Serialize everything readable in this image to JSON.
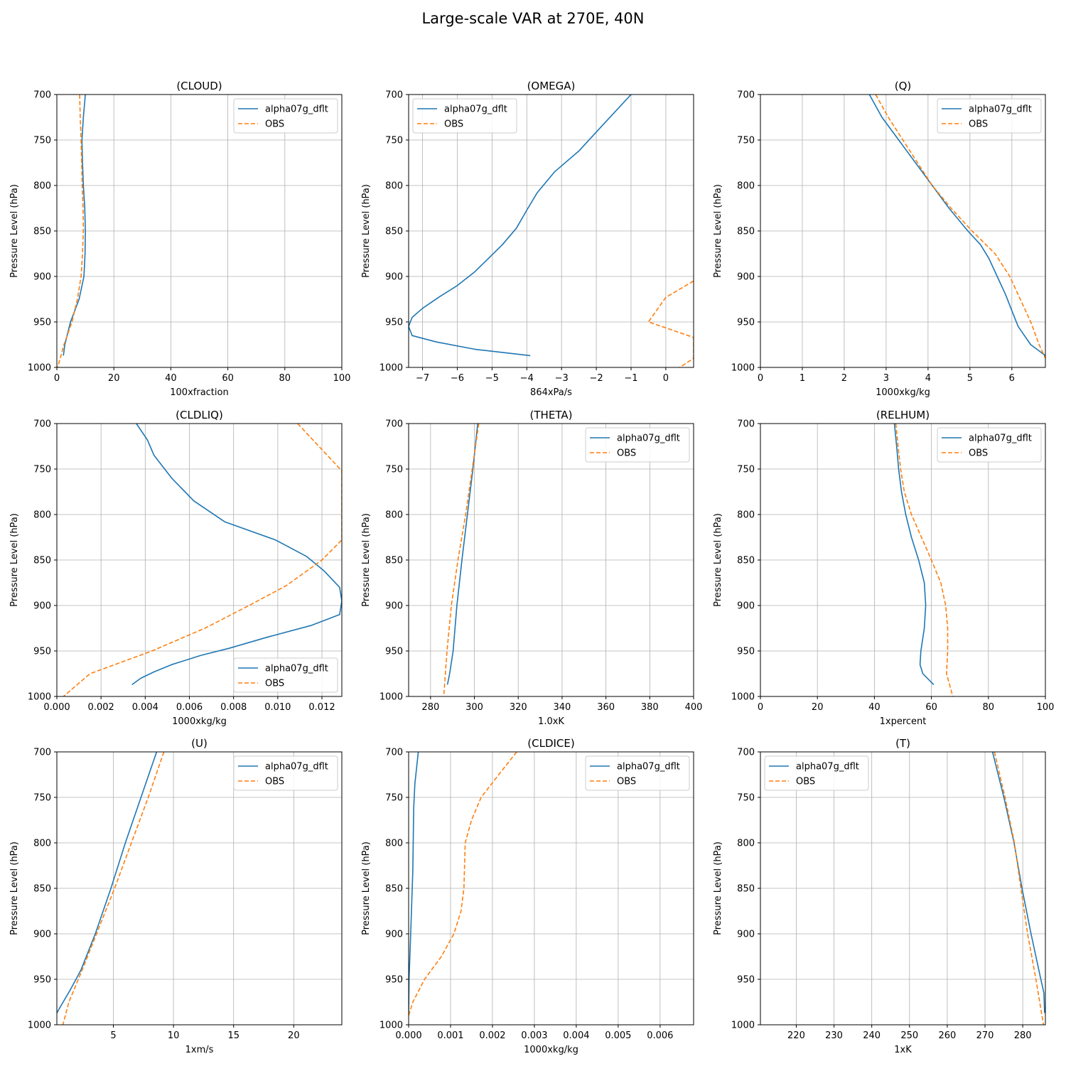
{
  "figure": {
    "title": "Large-scale VAR at 270E, 40N",
    "ylabel": "Pressure Level (hPa)",
    "ylim": [
      1000,
      700
    ],
    "yticks": [
      700,
      750,
      800,
      850,
      900,
      950,
      1000
    ]
  },
  "colors": {
    "model": "#1f77b4",
    "obs": "#ff7f0e",
    "grid": "#b0b0b0"
  },
  "chart_data": [
    {
      "type": "line",
      "title": "(CLOUD)",
      "xlabel": "100xfraction",
      "ylabel": "Pressure Level (hPa)",
      "xlim": [
        0,
        100
      ],
      "xticks": [
        0,
        20,
        40,
        60,
        80,
        100
      ],
      "ylim": [
        1000,
        700
      ],
      "grid": true,
      "legend": "upper-right",
      "series": [
        {
          "name": "alpha07g_dflt",
          "style": "solid",
          "p": [
            700,
            725,
            750,
            775,
            800,
            825,
            850,
            875,
            900,
            925,
            950,
            975,
            987
          ],
          "x": [
            10,
            9.3,
            8.8,
            9,
            9.3,
            9.8,
            10,
            9.9,
            9.5,
            7.8,
            4.8,
            2.8,
            2.3
          ]
        },
        {
          "name": "OBS",
          "style": "dashed",
          "p": [
            700,
            725,
            750,
            775,
            800,
            825,
            850,
            875,
            900,
            925,
            950,
            975,
            1000
          ],
          "x": [
            8,
            8.2,
            8.5,
            8.7,
            8.9,
            9.2,
            9.3,
            9,
            8.5,
            7.2,
            5.3,
            2.5,
            0.3
          ]
        }
      ]
    },
    {
      "type": "line",
      "title": "(OMEGA)",
      "xlabel": "864xPa/s",
      "ylabel": "Pressure Level (hPa)",
      "xlim": [
        -7.4,
        0.8
      ],
      "xticks": [
        -7,
        -6,
        -5,
        -4,
        -3,
        -2,
        -1,
        0
      ],
      "ylim": [
        1000,
        700
      ],
      "grid": true,
      "legend": "upper-left",
      "series": [
        {
          "name": "alpha07g_dflt",
          "style": "solid",
          "p": [
            700,
            737,
            762,
            785,
            808,
            827,
            847,
            865,
            880,
            895,
            910,
            922,
            935,
            945,
            955,
            965,
            972,
            980,
            987
          ],
          "x": [
            -1,
            -1.9,
            -2.5,
            -3.2,
            -3.7,
            -4,
            -4.3,
            -4.7,
            -5.1,
            -5.5,
            -6,
            -6.5,
            -7,
            -7.3,
            -7.4,
            -7.3,
            -6.6,
            -5.5,
            -3.9
          ]
        },
        {
          "name": "OBS",
          "style": "dashed",
          "p": [
            905,
            923,
            950,
            967,
            990,
            1000
          ],
          "x": [
            0.8,
            0,
            -0.5,
            0.8,
            0.8,
            0.4
          ]
        }
      ]
    },
    {
      "type": "line",
      "title": "(Q)",
      "xlabel": "1000xkg/kg",
      "ylabel": "Pressure Level (hPa)",
      "xlim": [
        0,
        6.8
      ],
      "xticks": [
        0,
        1,
        2,
        3,
        4,
        5,
        6
      ],
      "ylim": [
        1000,
        700
      ],
      "grid": true,
      "legend": "upper-right",
      "series": [
        {
          "name": "alpha07g_dflt",
          "style": "solid",
          "p": [
            700,
            725,
            750,
            775,
            800,
            825,
            850,
            865,
            880,
            900,
            920,
            940,
            955,
            965,
            975,
            987
          ],
          "x": [
            2.6,
            2.9,
            3.3,
            3.7,
            4.1,
            4.5,
            4.95,
            5.25,
            5.45,
            5.65,
            5.85,
            6.02,
            6.15,
            6.3,
            6.45,
            6.8
          ]
        },
        {
          "name": "OBS",
          "style": "dashed",
          "p": [
            700,
            725,
            750,
            775,
            800,
            825,
            850,
            875,
            900,
            925,
            950,
            975,
            990
          ],
          "x": [
            2.75,
            3.05,
            3.4,
            3.75,
            4.1,
            4.55,
            5.05,
            5.6,
            5.95,
            6.2,
            6.45,
            6.65,
            6.8
          ]
        }
      ]
    },
    {
      "type": "line",
      "title": "(CLDLIQ)",
      "xlabel": "1000xkg/kg",
      "ylabel": "Pressure Level (hPa)",
      "xlim": [
        0,
        0.0129
      ],
      "xticks": [
        0.0,
        0.002,
        0.004,
        0.006,
        0.008,
        0.01,
        0.012
      ],
      "ylim": [
        1000,
        700
      ],
      "grid": true,
      "legend": "lower-right",
      "series": [
        {
          "name": "alpha07g_dflt",
          "style": "solid",
          "p": [
            700,
            718,
            735,
            760,
            785,
            808,
            828,
            846,
            862,
            880,
            895,
            910,
            922,
            935,
            947,
            955,
            965,
            973,
            980,
            987
          ],
          "x": [
            0.0036,
            0.0041,
            0.0044,
            0.0052,
            0.0062,
            0.0076,
            0.0099,
            0.0113,
            0.0121,
            0.0128,
            0.0129,
            0.0128,
            0.0115,
            0.0095,
            0.0078,
            0.0065,
            0.0052,
            0.0044,
            0.0038,
            0.0034
          ]
        },
        {
          "name": "OBS",
          "style": "dashed",
          "p": [
            700,
            752,
            828,
            850,
            878,
            900,
            925,
            950,
            975,
            1000
          ],
          "x": [
            0.0109,
            0.0129,
            0.0129,
            0.012,
            0.0104,
            0.0087,
            0.0067,
            0.0043,
            0.0015,
            0.0003
          ]
        }
      ]
    },
    {
      "type": "line",
      "title": "(THETA)",
      "xlabel": "1.0xK",
      "ylabel": "Pressure Level (hPa)",
      "xlim": [
        270,
        400
      ],
      "xticks": [
        280,
        300,
        320,
        340,
        360,
        380,
        400
      ],
      "ylim": [
        1000,
        700
      ],
      "grid": true,
      "legend": "upper-right",
      "series": [
        {
          "name": "alpha07g_dflt",
          "style": "solid",
          "p": [
            700,
            750,
            800,
            850,
            900,
            950,
            975,
            987
          ],
          "x": [
            301.5,
            299.3,
            296.8,
            294.3,
            292,
            290.3,
            288.7,
            287.7
          ]
        },
        {
          "name": "OBS",
          "style": "dashed",
          "p": [
            700,
            750,
            800,
            850,
            900,
            950,
            1000
          ],
          "x": [
            302,
            299,
            296,
            292.5,
            289.5,
            287.5,
            286
          ]
        }
      ]
    },
    {
      "type": "line",
      "title": "(RELHUM)",
      "xlabel": "1xpercent",
      "ylabel": "Pressure Level (hPa)",
      "xlim": [
        0,
        100
      ],
      "xticks": [
        0,
        20,
        40,
        60,
        80,
        100
      ],
      "ylim": [
        1000,
        700
      ],
      "grid": true,
      "legend": "upper-right",
      "series": [
        {
          "name": "alpha07g_dflt",
          "style": "solid",
          "p": [
            700,
            725,
            750,
            775,
            800,
            825,
            850,
            875,
            900,
            925,
            950,
            965,
            975,
            987
          ],
          "x": [
            47,
            47.8,
            48.5,
            49.5,
            51,
            53,
            55.5,
            57.5,
            58,
            57.5,
            56.3,
            56,
            57,
            60.8
          ]
        },
        {
          "name": "OBS",
          "style": "dashed",
          "p": [
            700,
            725,
            750,
            775,
            800,
            825,
            850,
            875,
            900,
            925,
            950,
            975,
            1000
          ],
          "x": [
            47.5,
            48.3,
            49.2,
            50.5,
            53,
            56.5,
            60,
            63.3,
            65,
            65.7,
            65.7,
            65.3,
            67.5
          ]
        }
      ]
    },
    {
      "type": "line",
      "title": "(U)",
      "xlabel": "1xm/s",
      "ylabel": "Pressure Level (hPa)",
      "xlim": [
        0.3,
        24
      ],
      "xticks": [
        5,
        10,
        15,
        20
      ],
      "ylim": [
        1000,
        700
      ],
      "grid": true,
      "legend": "upper-right",
      "series": [
        {
          "name": "alpha07g_dflt",
          "style": "solid",
          "p": [
            700,
            750,
            800,
            850,
            900,
            940,
            962,
            980,
            987
          ],
          "x": [
            8.6,
            7.3,
            6,
            4.8,
            3.5,
            2.3,
            1.4,
            0.6,
            0.3
          ]
        },
        {
          "name": "OBS",
          "style": "dashed",
          "p": [
            700,
            750,
            800,
            850,
            900,
            940,
            975,
            1000
          ],
          "x": [
            9.2,
            7.9,
            6.5,
            5.1,
            3.6,
            2.4,
            1.3,
            0.8
          ]
        }
      ]
    },
    {
      "type": "line",
      "title": "(CLDICE)",
      "xlabel": "1000xkg/kg",
      "ylabel": "Pressure Level (hPa)",
      "xlim": [
        0,
        0.0068
      ],
      "xticks": [
        0.0,
        0.001,
        0.002,
        0.003,
        0.004,
        0.005,
        0.006
      ],
      "ylim": [
        1000,
        700
      ],
      "grid": true,
      "legend": "upper-right",
      "series": [
        {
          "name": "alpha07g_dflt",
          "style": "solid",
          "p": [
            700,
            735,
            762,
            830,
            900,
            950,
            987
          ],
          "x": [
            0.00023,
            0.00015,
            0.00012,
            0.0001,
            5e-05,
            1e-05,
            0.0
          ]
        },
        {
          "name": "OBS",
          "style": "dashed",
          "p": [
            700,
            725,
            750,
            775,
            800,
            850,
            875,
            900,
            925,
            950,
            975,
            990
          ],
          "x": [
            0.00258,
            0.00215,
            0.00173,
            0.0015,
            0.00135,
            0.00132,
            0.00125,
            0.00108,
            0.00078,
            0.00038,
            0.0001,
            0.0
          ]
        }
      ]
    },
    {
      "type": "line",
      "title": "(T)",
      "xlabel": "1xK",
      "ylabel": "Pressure Level (hPa)",
      "xlim": [
        210.5,
        286
      ],
      "xticks": [
        220,
        230,
        240,
        250,
        260,
        270,
        280
      ],
      "ylim": [
        1000,
        700
      ],
      "grid": true,
      "legend": "upper-left",
      "series": [
        {
          "name": "alpha07g_dflt",
          "style": "solid",
          "p": [
            700,
            750,
            800,
            850,
            900,
            950,
            965,
            987
          ],
          "x": [
            272,
            275,
            277.7,
            279.8,
            282.2,
            284.8,
            285.6,
            285.8
          ]
        },
        {
          "name": "OBS",
          "style": "dashed",
          "p": [
            700,
            750,
            800,
            850,
            900,
            950,
            1000
          ],
          "x": [
            272.5,
            275.3,
            277.8,
            279.5,
            281.3,
            283.5,
            285.5
          ]
        }
      ]
    }
  ]
}
